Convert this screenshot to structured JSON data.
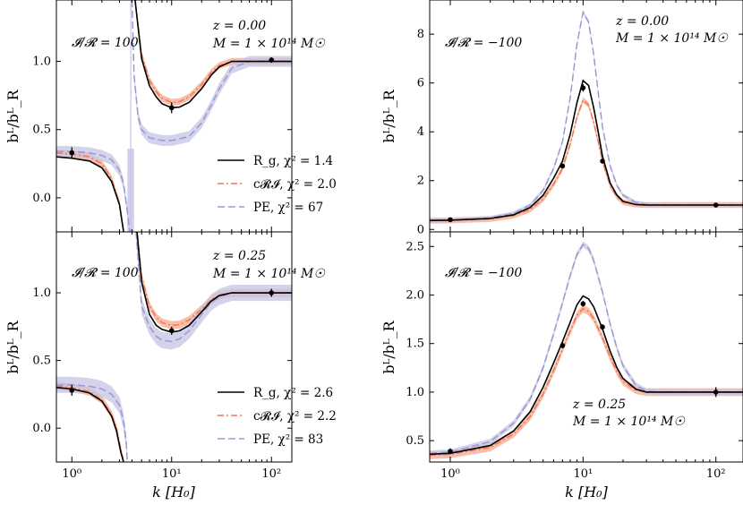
{
  "figure": {
    "xlabel": "k  [H₀]",
    "ylabel": "bᴸ/bᴸ_R",
    "x_ticks": [
      "10⁰",
      "10¹",
      "10²"
    ]
  },
  "chart_data": [
    {
      "type": "line",
      "panel": "top-left",
      "xscale": "log",
      "xlim": [
        0.7,
        160
      ],
      "ylim": [
        -0.25,
        1.45
      ],
      "yticks": [
        0.0,
        0.5,
        1.0
      ],
      "ytick_labels": [
        "0.0",
        "0.5",
        "1.0"
      ],
      "ratio_label": "𝓘/𝓡 = 100",
      "z_label": "z = 0.00",
      "m_label": "M = 1 × 10¹⁴ M☉",
      "pole_k": 3.9,
      "series": [
        {
          "name": "R_g",
          "legend": "R_g,  χ² = 1.4",
          "color": "#000000",
          "style": "solid",
          "x": [
            0.7,
            1,
            1.5,
            2,
            2.5,
            3,
            3.3,
            3.6,
            3.9,
            4.3,
            5,
            6,
            7,
            8,
            10,
            12,
            15,
            20,
            25,
            30,
            40,
            60,
            100,
            160
          ],
          "y": [
            0.3,
            0.29,
            0.27,
            0.22,
            0.12,
            -0.05,
            -0.25,
            null,
            null,
            1.45,
            1.02,
            0.82,
            0.74,
            0.69,
            0.66,
            0.665,
            0.7,
            0.8,
            0.9,
            0.96,
            1.0,
            1.0,
            1.0,
            1.0
          ]
        },
        {
          "name": "cRI",
          "legend": "c𝓡𝓘,  χ² = 2.0",
          "color": "#f07850",
          "style": "dashdot",
          "x": [
            0.7,
            1,
            1.5,
            2,
            2.5,
            3,
            3.3,
            3.6,
            3.9,
            4.3,
            5,
            6,
            7,
            8,
            10,
            12,
            15,
            20,
            25,
            30,
            40,
            60,
            100,
            160
          ],
          "y": [
            0.33,
            0.32,
            0.3,
            0.25,
            0.14,
            -0.04,
            -0.25,
            null,
            null,
            1.45,
            1.05,
            0.86,
            0.78,
            0.73,
            0.7,
            0.705,
            0.74,
            0.83,
            0.92,
            0.97,
            1.0,
            1.0,
            1.0,
            1.0
          ],
          "band": 0.025
        },
        {
          "name": "PE",
          "legend": "PE,  χ² = 67",
          "color": "#9b98d0",
          "style": "dashed",
          "x": [
            0.7,
            1,
            1.5,
            2,
            2.5,
            3,
            3.3,
            3.6,
            3.8,
            3.9,
            4.0,
            4.2,
            4.6,
            5,
            6,
            8,
            10,
            15,
            20,
            25,
            30,
            40,
            60,
            100,
            160
          ],
          "y": [
            0.34,
            0.34,
            0.33,
            0.31,
            0.28,
            0.2,
            0.1,
            -0.1,
            -0.25,
            null,
            1.45,
            0.9,
            0.6,
            0.5,
            0.44,
            0.42,
            0.42,
            0.45,
            0.55,
            0.68,
            0.8,
            0.95,
            1.0,
            1.0,
            1.0
          ],
          "band": 0.04
        }
      ],
      "data_points": {
        "x": [
          1,
          10,
          100
        ],
        "y": [
          0.33,
          0.66,
          1.01
        ],
        "err": [
          0.04,
          0.04,
          0.02
        ]
      }
    },
    {
      "type": "line",
      "panel": "top-right",
      "xscale": "log",
      "xlim": [
        0.7,
        160
      ],
      "ylim": [
        -0.1,
        9.4
      ],
      "yticks": [
        0,
        2,
        4,
        6,
        8
      ],
      "ytick_labels": [
        "0",
        "2",
        "4",
        "6",
        "8"
      ],
      "ratio_label": "𝓘/𝓡 = −100",
      "z_label": "z = 0.00",
      "m_label": "M = 1 × 10¹⁴ M☉",
      "series": [
        {
          "name": "R_g",
          "color": "#000000",
          "style": "solid",
          "x": [
            0.7,
            1,
            2,
            3,
            4,
            5,
            6,
            7,
            8,
            9,
            10,
            11,
            12,
            13,
            14,
            16,
            18,
            20,
            25,
            30,
            40,
            60,
            100,
            160
          ],
          "y": [
            0.37,
            0.38,
            0.45,
            0.6,
            0.9,
            1.4,
            2.1,
            2.8,
            3.9,
            5.2,
            6.1,
            5.9,
            5.0,
            4.0,
            3.0,
            1.9,
            1.4,
            1.15,
            1.02,
            1.0,
            1.0,
            1.0,
            1.0,
            1.0
          ]
        },
        {
          "name": "cRI",
          "color": "#f07850",
          "style": "dashdot",
          "x": [
            0.7,
            1,
            2,
            3,
            4,
            5,
            6,
            7,
            8,
            9,
            10,
            11,
            12,
            13,
            14,
            16,
            18,
            20,
            25,
            30,
            40,
            60,
            100,
            160
          ],
          "y": [
            0.36,
            0.37,
            0.43,
            0.57,
            0.82,
            1.25,
            1.85,
            2.5,
            3.5,
            4.6,
            5.3,
            5.1,
            4.4,
            3.6,
            2.8,
            1.8,
            1.35,
            1.12,
            1.02,
            1.0,
            1.0,
            1.0,
            1.0,
            1.0
          ],
          "band": 0.12
        },
        {
          "name": "PE",
          "color": "#9b98d0",
          "style": "dashed",
          "x": [
            0.7,
            1,
            2,
            3,
            4,
            5,
            6,
            7,
            8,
            9,
            10,
            11,
            12,
            13,
            14,
            16,
            18,
            20,
            25,
            30,
            40,
            60,
            100,
            160
          ],
          "y": [
            0.37,
            0.38,
            0.47,
            0.66,
            1.0,
            1.6,
            2.5,
            3.6,
            5.4,
            7.6,
            8.9,
            8.5,
            7.2,
            5.6,
            4.2,
            2.6,
            1.8,
            1.4,
            1.1,
            1.03,
            1.0,
            1.0,
            1.0,
            1.0
          ],
          "band": 0.08
        }
      ],
      "data_points": {
        "x": [
          1,
          7,
          10,
          14,
          100
        ],
        "y": [
          0.4,
          2.6,
          5.8,
          2.8,
          1.0
        ],
        "err": [
          0.06,
          0.1,
          0.15,
          0.1,
          0.05
        ]
      }
    },
    {
      "type": "line",
      "panel": "bottom-left",
      "xscale": "log",
      "xlim": [
        0.7,
        160
      ],
      "ylim": [
        -0.25,
        1.45
      ],
      "yticks": [
        0.0,
        0.5,
        1.0
      ],
      "ytick_labels": [
        "0.0",
        "0.5",
        "1.0"
      ],
      "ratio_label": "𝓘/𝓡 = 100",
      "z_label": "z = 0.25",
      "m_label": "M = 1 × 10¹⁴ M☉",
      "series": [
        {
          "name": "R_g",
          "legend": "R_g,  χ² = 2.6",
          "color": "#000000",
          "style": "solid",
          "x": [
            0.7,
            1,
            1.5,
            2,
            2.5,
            2.8,
            3.1,
            3.3,
            4.0,
            4.5,
            5,
            6,
            7,
            8,
            10,
            12,
            15,
            20,
            25,
            30,
            40,
            60,
            100,
            160
          ],
          "y": [
            0.3,
            0.29,
            0.26,
            0.2,
            0.09,
            -0.02,
            -0.18,
            -0.25,
            null,
            1.45,
            1.08,
            0.84,
            0.76,
            0.73,
            0.71,
            0.72,
            0.76,
            0.86,
            0.94,
            0.98,
            1.0,
            1.0,
            1.0,
            1.0
          ]
        },
        {
          "name": "cRI",
          "legend": "c𝓡𝓘,  χ² = 2.2",
          "color": "#f07850",
          "style": "dashdot",
          "x": [
            0.7,
            1,
            1.5,
            2,
            2.5,
            2.8,
            3.1,
            3.3,
            4.0,
            4.5,
            5,
            6,
            7,
            8,
            10,
            12,
            15,
            20,
            25,
            30,
            40,
            60,
            100,
            160
          ],
          "y": [
            0.31,
            0.3,
            0.27,
            0.21,
            0.1,
            0.0,
            -0.16,
            -0.25,
            null,
            1.45,
            1.12,
            0.9,
            0.82,
            0.78,
            0.76,
            0.765,
            0.8,
            0.88,
            0.95,
            0.98,
            1.0,
            1.0,
            1.0,
            1.0
          ],
          "band": 0.03
        },
        {
          "name": "PE",
          "legend": "PE,  χ² = 83",
          "color": "#9b98d0",
          "style": "dashed",
          "x": [
            0.7,
            1,
            1.5,
            2,
            2.5,
            3,
            3.3,
            3.5,
            3.6,
            4.0,
            4.4,
            5,
            6,
            7,
            8,
            10,
            12,
            15,
            20,
            25,
            30,
            40,
            60,
            100,
            160
          ],
          "y": [
            0.32,
            0.32,
            0.31,
            0.29,
            0.25,
            0.17,
            0.05,
            -0.1,
            -0.25,
            null,
            1.45,
            0.9,
            0.75,
            0.68,
            0.65,
            0.64,
            0.66,
            0.72,
            0.84,
            0.93,
            0.97,
            1.0,
            1.0,
            1.0,
            1.0
          ],
          "band": 0.06
        }
      ],
      "data_points": {
        "x": [
          1,
          10,
          100
        ],
        "y": [
          0.28,
          0.72,
          1.0
        ],
        "err": [
          0.04,
          0.03,
          0.03
        ]
      }
    },
    {
      "type": "line",
      "panel": "bottom-right",
      "xscale": "log",
      "xlim": [
        0.7,
        160
      ],
      "ylim": [
        0.28,
        2.65
      ],
      "yticks": [
        0.5,
        1.0,
        1.5,
        2.0,
        2.5
      ],
      "ytick_labels": [
        "0.5",
        "1.0",
        "1.5",
        "2.0",
        "2.5"
      ],
      "ratio_label": "𝓘/𝓡 = −100",
      "z_label": "z = 0.25",
      "m_label": "M = 1 × 10¹⁴ M☉",
      "series": [
        {
          "name": "R_g",
          "color": "#000000",
          "style": "solid",
          "x": [
            0.7,
            1,
            2,
            3,
            4,
            5,
            6,
            7,
            8,
            9,
            10,
            11,
            12,
            14,
            16,
            18,
            20,
            25,
            30,
            40,
            60,
            100,
            160
          ],
          "y": [
            0.36,
            0.37,
            0.45,
            0.6,
            0.8,
            1.05,
            1.3,
            1.52,
            1.72,
            1.9,
            1.99,
            1.96,
            1.88,
            1.65,
            1.42,
            1.25,
            1.14,
            1.03,
            1.0,
            1.0,
            1.0,
            1.0,
            1.0
          ]
        },
        {
          "name": "cRI",
          "color": "#f07850",
          "style": "dashdot",
          "x": [
            0.7,
            1,
            2,
            3,
            4,
            5,
            6,
            7,
            8,
            9,
            10,
            11,
            12,
            14,
            16,
            18,
            20,
            25,
            30,
            40,
            60,
            100,
            160
          ],
          "y": [
            0.35,
            0.36,
            0.43,
            0.57,
            0.75,
            0.98,
            1.22,
            1.44,
            1.63,
            1.79,
            1.86,
            1.83,
            1.76,
            1.56,
            1.36,
            1.21,
            1.11,
            1.02,
            1.0,
            1.0,
            1.0,
            1.0,
            1.0
          ],
          "band": 0.04
        },
        {
          "name": "PE",
          "color": "#9b98d0",
          "style": "dashed",
          "x": [
            0.7,
            1,
            2,
            3,
            4,
            5,
            6,
            7,
            8,
            9,
            10,
            11,
            12,
            14,
            16,
            18,
            20,
            25,
            30,
            40,
            60,
            100,
            160
          ],
          "y": [
            0.37,
            0.38,
            0.49,
            0.68,
            0.93,
            1.25,
            1.6,
            1.92,
            2.2,
            2.42,
            2.52,
            2.48,
            2.36,
            2.03,
            1.7,
            1.45,
            1.27,
            1.07,
            1.01,
            1.0,
            1.0,
            1.0,
            1.0
          ],
          "band": 0.03
        }
      ],
      "data_points": {
        "x": [
          1,
          7,
          10,
          14,
          100
        ],
        "y": [
          0.39,
          1.48,
          1.91,
          1.67,
          1.0
        ],
        "err": [
          0.03,
          0.03,
          0.03,
          0.03,
          0.05
        ]
      }
    }
  ]
}
